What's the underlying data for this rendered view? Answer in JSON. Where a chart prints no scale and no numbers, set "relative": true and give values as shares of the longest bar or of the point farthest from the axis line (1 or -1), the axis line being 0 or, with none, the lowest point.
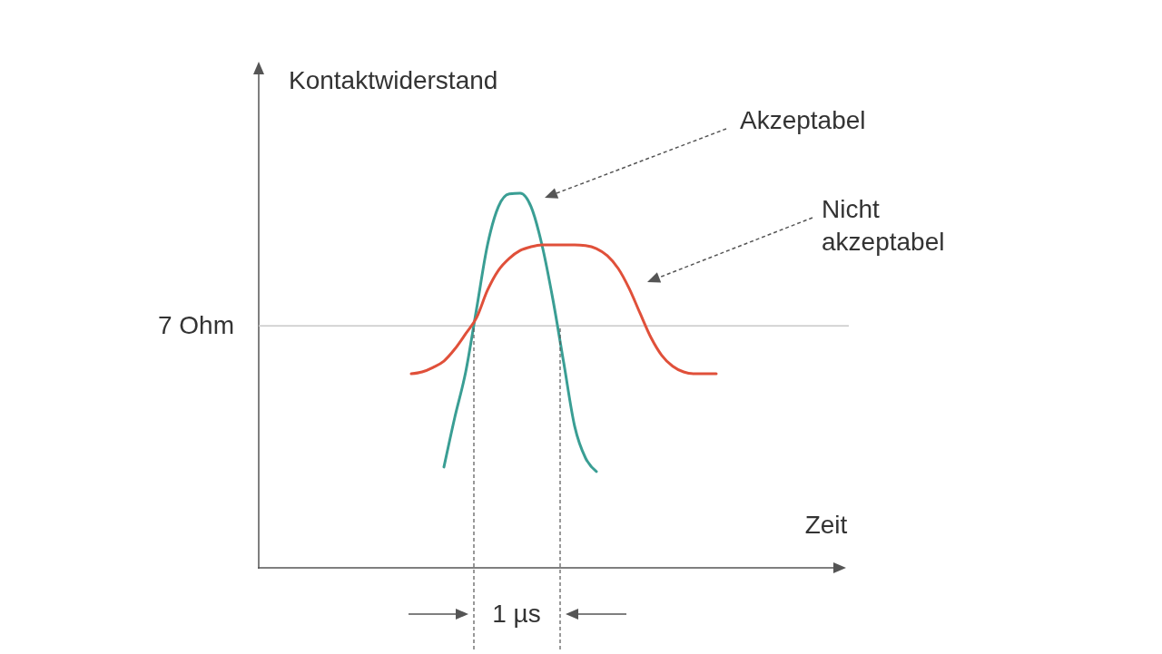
{
  "chart_data": {
    "type": "line",
    "relative": true,
    "xlabel": "Zeit",
    "ylabel": "Kontaktwiderstand",
    "categories": [
      null,
      null,
      null,
      null,
      null,
      null,
      null,
      null,
      null,
      null,
      null,
      null,
      null,
      null,
      null,
      null,
      null,
      null,
      null,
      null,
      null,
      null,
      null,
      null,
      null,
      null,
      null,
      null,
      null,
      null,
      null,
      null,
      null,
      null,
      null,
      null,
      null,
      null,
      null,
      null,
      null,
      null,
      null,
      null,
      null,
      null,
      null,
      null,
      null,
      null,
      null,
      null,
      null,
      null
    ],
    "series": [
      {
        "name": "Akzeptabel",
        "color": "#3a9e94",
        "values": [
          null,
          null,
          null,
          null,
          null,
          null,
          null,
          null,
          null,
          null,
          null,
          null,
          null,
          null,
          null,
          null,
          null,
          0.269,
          0.402,
          0.523,
          0.692,
          0.862,
          0.964,
          0.998,
          1.0,
          0.964,
          0.862,
          0.717,
          0.547,
          0.378,
          0.293,
          0.257,
          null,
          null,
          null,
          null,
          null,
          null,
          null,
          null,
          null,
          null,
          null,
          null,
          null,
          null,
          null,
          null,
          null,
          null,
          null,
          null,
          null,
          null
        ]
      },
      {
        "name": "Nicht akzeptabel",
        "color": "#e0503a",
        "values": [
          null,
          null,
          null,
          null,
          null,
          null,
          null,
          null,
          null,
          null,
          null,
          null,
          null,
          null,
          0.518,
          0.523,
          0.535,
          0.552,
          0.584,
          0.625,
          0.668,
          0.741,
          0.794,
          0.826,
          0.847,
          0.857,
          0.862,
          0.862,
          0.862,
          0.862,
          0.86,
          0.852,
          0.833,
          0.799,
          0.746,
          0.68,
          0.615,
          0.567,
          0.538,
          0.523,
          0.518,
          0.518,
          0.518,
          null,
          null,
          null,
          null,
          null,
          null,
          null,
          null,
          null,
          null,
          null
        ]
      }
    ],
    "ref_lines": [
      {
        "axis": "y",
        "value": 0.646,
        "label": "7 Ohm",
        "color": "#c8c8c8"
      }
    ],
    "annotations": [
      "1 µs"
    ]
  }
}
